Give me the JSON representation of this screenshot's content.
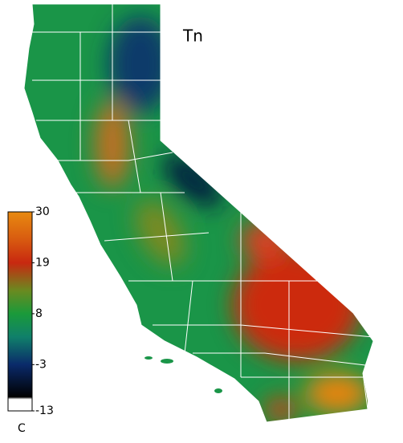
{
  "map": {
    "title": "Tn",
    "colorbar": {
      "range": [
        -13,
        30
      ],
      "ticks": [
        30,
        19,
        8,
        -3,
        -13
      ],
      "unit": "C",
      "colorscale": [
        {
          "value": -13,
          "color": "#ffffff"
        },
        {
          "value": -10.5,
          "color": "#ffffff"
        },
        {
          "value": -10,
          "color": "#000000"
        },
        {
          "value": -3,
          "color": "#0a2a6a"
        },
        {
          "value": 3,
          "color": "#10806a"
        },
        {
          "value": 8,
          "color": "#1a9a3a"
        },
        {
          "value": 13,
          "color": "#6a8a20"
        },
        {
          "value": 19,
          "color": "#c82810"
        },
        {
          "value": 24,
          "color": "#d85a10"
        },
        {
          "value": 30,
          "color": "#e88a10"
        }
      ]
    }
  }
}
